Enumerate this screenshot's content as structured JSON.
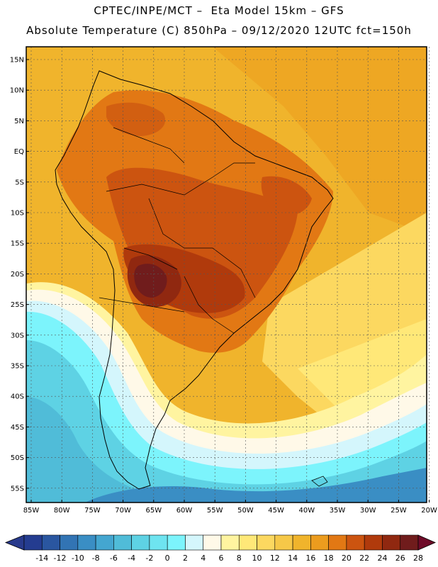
{
  "header": {
    "line1": "CPTEC/INPE/MCT –  Eta Model 15km – GFS",
    "line2": "Absolute Temperature (C) 850hPa – 09/12/2020 12UTC fct=150h"
  },
  "map": {
    "lat_labels": [
      "15N",
      "10N",
      "5N",
      "EQ",
      "5S",
      "10S",
      "15S",
      "20S",
      "25S",
      "30S",
      "35S",
      "40S",
      "45S",
      "50S",
      "55S"
    ],
    "lon_labels": [
      "85W",
      "80W",
      "75W",
      "70W",
      "65W",
      "60W",
      "55W",
      "50W",
      "45W",
      "40W",
      "35W",
      "30W",
      "25W",
      "20W"
    ],
    "gridlines": true,
    "coastline_color": "#000000"
  },
  "colorbar": {
    "ticks": [
      "-14",
      "-12",
      "-10",
      "-8",
      "-6",
      "-4",
      "-2",
      "0",
      "2",
      "4",
      "6",
      "8",
      "10",
      "12",
      "14",
      "16",
      "18",
      "20",
      "22",
      "24",
      "26",
      "28"
    ],
    "under_color": "#283a8c",
    "over_color": "#6e0a28",
    "colors": [
      "#243c90",
      "#2a56a0",
      "#3274b4",
      "#3a8ec4",
      "#44a6d0",
      "#50bcd8",
      "#5ed2e4",
      "#6ee4f0",
      "#7cf4fc",
      "#d4f6fc",
      "#fff9e8",
      "#fff4a0",
      "#ffe878",
      "#fcd860",
      "#f6c848",
      "#f0b42c",
      "#ec9c1e",
      "#e27814",
      "#cc5410",
      "#b03a0c",
      "#902810",
      "#701c1c"
    ]
  }
}
